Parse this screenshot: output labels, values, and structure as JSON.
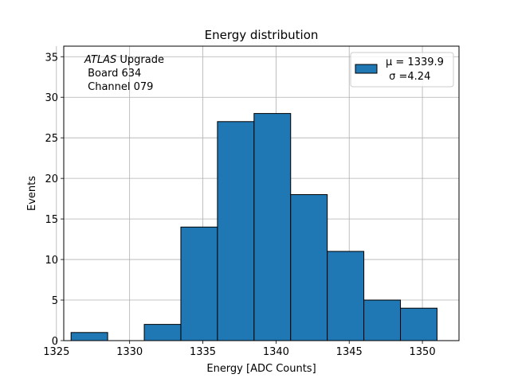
{
  "chart_data": {
    "type": "bar",
    "title": "Energy distribution",
    "xlabel": "Energy [ADC Counts]",
    "ylabel": "Events",
    "xlim": [
      1325.5,
      1352.5
    ],
    "ylim": [
      0,
      36.3
    ],
    "xticks": [
      1325,
      1330,
      1335,
      1340,
      1345,
      1350
    ],
    "yticks": [
      0,
      5,
      10,
      15,
      20,
      25,
      30,
      35
    ],
    "grid": true,
    "bin_edges": [
      1326.0,
      1328.5,
      1331.0,
      1333.5,
      1336.0,
      1338.5,
      1341.0,
      1343.5,
      1346.0,
      1348.5,
      1351.0
    ],
    "values": [
      1,
      0,
      2,
      14,
      27,
      28,
      18,
      11,
      5,
      4
    ],
    "bar_color": "#1f77b4",
    "edge_color": "#000000",
    "annotation": {
      "italic": "ATLAS",
      "rest": " Upgrade",
      "line2": " Board 634",
      "line3": " Channel 079"
    },
    "legend": {
      "placement": "top-right",
      "line1": "μ = 1339.9",
      "line2": " σ =4.24"
    }
  }
}
